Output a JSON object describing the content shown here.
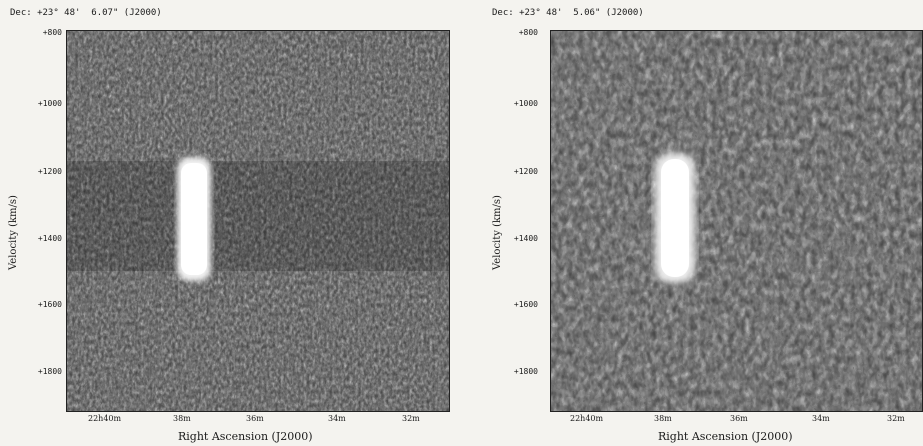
{
  "panels": [
    {
      "dec_label": "Dec: +23° 48'  6.07\" (J2000)",
      "y_axis_label": "Velocity (km/s)",
      "x_axis_label": "Right Ascension (J2000)",
      "y_ticks": [
        "+800",
        "+1000",
        "+1200",
        "+1400",
        "+1600",
        "+1800"
      ],
      "x_ticks": [
        "22h40m",
        "38m",
        "36m",
        "34m",
        "32m"
      ]
    },
    {
      "dec_label": "Dec: +23° 48'  5.06\" (J2000)",
      "y_axis_label": "Velocity (km/s)",
      "x_axis_label": "Right Ascension (J2000)",
      "y_ticks": [
        "+800",
        "+1000",
        "+1200",
        "+1400",
        "+1600",
        "+1800"
      ],
      "x_ticks": [
        "22h40m",
        "38m",
        "36m",
        "34m",
        "32m"
      ]
    }
  ]
}
